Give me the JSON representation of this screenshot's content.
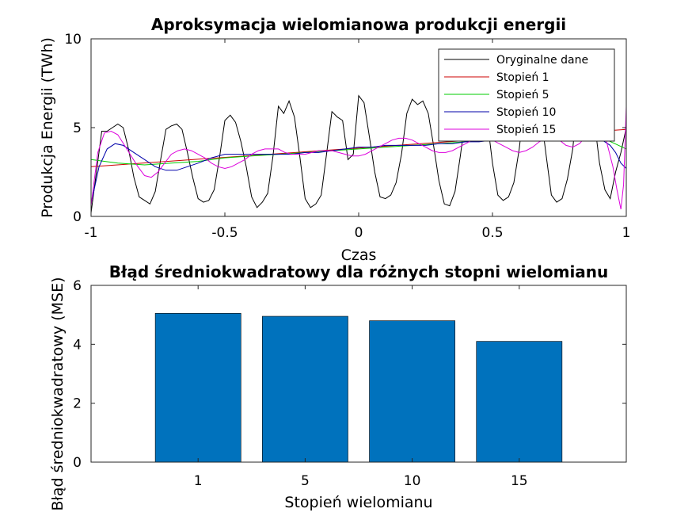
{
  "chart_data": [
    {
      "type": "line",
      "title": "Aproksymacja wielomianowa produkcji energii",
      "xlabel": "Czas",
      "ylabel": "Produkcja Energii (TWh)",
      "xlim": [
        -1,
        1
      ],
      "ylim": [
        0,
        10
      ],
      "xticks": [
        -1,
        -0.5,
        0,
        0.5,
        1
      ],
      "xtick_labels": [
        "-1",
        "-0.5",
        "0",
        "0.5",
        "1"
      ],
      "yticks": [
        0,
        5,
        10
      ],
      "ytick_labels": [
        "0",
        "5",
        "10"
      ],
      "grid": false,
      "legend": "top-right",
      "series": [
        {
          "name": "Oryginalne dane",
          "color": "#000000",
          "x": [
            -1.0,
            -0.98,
            -0.96,
            -0.94,
            -0.92,
            -0.9,
            -0.88,
            -0.86,
            -0.84,
            -0.82,
            -0.8,
            -0.78,
            -0.76,
            -0.74,
            -0.72,
            -0.7,
            -0.68,
            -0.66,
            -0.64,
            -0.62,
            -0.6,
            -0.58,
            -0.56,
            -0.54,
            -0.52,
            -0.5,
            -0.48,
            -0.46,
            -0.44,
            -0.42,
            -0.4,
            -0.38,
            -0.36,
            -0.34,
            -0.32,
            -0.3,
            -0.28,
            -0.26,
            -0.24,
            -0.22,
            -0.2,
            -0.18,
            -0.16,
            -0.14,
            -0.12,
            -0.1,
            -0.08,
            -0.06,
            -0.04,
            -0.02,
            0.0,
            0.02,
            0.04,
            0.06,
            0.08,
            0.1,
            0.12,
            0.14,
            0.16,
            0.18,
            0.2,
            0.22,
            0.24,
            0.26,
            0.28,
            0.3,
            0.32,
            0.34,
            0.36,
            0.38,
            0.4,
            0.42,
            0.44,
            0.46,
            0.48,
            0.5,
            0.52,
            0.54,
            0.56,
            0.58,
            0.6,
            0.62,
            0.64,
            0.66,
            0.68,
            0.7,
            0.72,
            0.74,
            0.76,
            0.78,
            0.8,
            0.82,
            0.84,
            0.86,
            0.88,
            0.9,
            0.92,
            0.94,
            0.96,
            0.98,
            1.0
          ],
          "y": [
            0.2,
            2.5,
            4.8,
            4.8,
            5.0,
            5.2,
            5.0,
            3.8,
            2.2,
            1.1,
            0.9,
            0.7,
            1.4,
            3.2,
            4.9,
            5.1,
            5.2,
            4.9,
            3.6,
            2.2,
            1.0,
            0.8,
            0.9,
            1.5,
            3.3,
            5.4,
            5.7,
            5.3,
            4.2,
            2.8,
            1.1,
            0.5,
            0.8,
            1.3,
            3.4,
            6.2,
            5.8,
            6.5,
            5.6,
            3.4,
            1.0,
            0.5,
            0.7,
            1.2,
            3.5,
            5.9,
            5.6,
            5.4,
            3.2,
            3.5,
            6.8,
            6.4,
            4.5,
            2.5,
            1.1,
            1.0,
            1.2,
            1.9,
            3.5,
            5.8,
            6.6,
            6.3,
            6.5,
            5.8,
            4.0,
            2.0,
            0.7,
            0.6,
            1.4,
            3.4,
            5.7,
            6.6,
            6.6,
            6.3,
            5.5,
            3.0,
            1.2,
            0.9,
            1.1,
            1.9,
            3.8,
            6.5,
            6.9,
            6.5,
            5.9,
            3.5,
            1.2,
            0.8,
            1.0,
            2.1,
            3.8,
            7.0,
            6.8,
            7.0,
            5.5,
            3.0,
            1.5,
            1.0,
            2.5,
            3.6,
            5.0
          ]
        },
        {
          "name": "Stopień 1",
          "color": "#cc0000",
          "x": [
            -1.0,
            1.0
          ],
          "y": [
            2.8,
            4.9
          ]
        },
        {
          "name": "Stopień 5",
          "color": "#00cc00",
          "x": [
            -1.0,
            -0.9,
            -0.8,
            -0.7,
            -0.6,
            -0.5,
            -0.4,
            -0.3,
            -0.2,
            -0.1,
            0.0,
            0.1,
            0.2,
            0.3,
            0.4,
            0.5,
            0.6,
            0.7,
            0.8,
            0.9,
            1.0
          ],
          "y": [
            3.2,
            3.0,
            2.9,
            3.0,
            3.1,
            3.3,
            3.4,
            3.5,
            3.6,
            3.7,
            3.8,
            3.9,
            4.0,
            4.1,
            4.2,
            4.3,
            4.5,
            4.6,
            4.7,
            4.5,
            3.8
          ]
        },
        {
          "name": "Stopień 10",
          "color": "#0000aa",
          "x": [
            -1.0,
            -0.97,
            -0.94,
            -0.91,
            -0.88,
            -0.84,
            -0.8,
            -0.76,
            -0.72,
            -0.68,
            -0.64,
            -0.6,
            -0.55,
            -0.5,
            -0.45,
            -0.4,
            -0.35,
            -0.3,
            -0.25,
            -0.2,
            -0.15,
            -0.1,
            -0.05,
            0.0,
            0.05,
            0.1,
            0.15,
            0.2,
            0.25,
            0.3,
            0.35,
            0.4,
            0.45,
            0.5,
            0.55,
            0.6,
            0.65,
            0.7,
            0.75,
            0.8,
            0.84,
            0.88,
            0.91,
            0.94,
            0.96,
            0.98,
            1.0
          ],
          "y": [
            0.7,
            2.8,
            3.8,
            4.1,
            4.0,
            3.6,
            3.2,
            2.8,
            2.6,
            2.6,
            2.8,
            3.0,
            3.3,
            3.5,
            3.5,
            3.5,
            3.5,
            3.5,
            3.5,
            3.6,
            3.6,
            3.7,
            3.8,
            3.9,
            3.9,
            4.0,
            4.0,
            4.0,
            4.0,
            4.1,
            4.1,
            4.2,
            4.2,
            4.3,
            4.3,
            4.4,
            4.5,
            4.6,
            4.6,
            4.6,
            4.5,
            4.4,
            4.3,
            4.0,
            3.6,
            3.0,
            2.7
          ]
        },
        {
          "name": "Stopień 15",
          "color": "#dd00dd",
          "x": [
            -1.0,
            -0.975,
            -0.95,
            -0.925,
            -0.9,
            -0.875,
            -0.85,
            -0.825,
            -0.8,
            -0.775,
            -0.75,
            -0.725,
            -0.7,
            -0.675,
            -0.65,
            -0.625,
            -0.6,
            -0.575,
            -0.55,
            -0.525,
            -0.5,
            -0.475,
            -0.45,
            -0.425,
            -0.4,
            -0.375,
            -0.35,
            -0.325,
            -0.3,
            -0.275,
            -0.25,
            -0.225,
            -0.2,
            -0.175,
            -0.15,
            -0.125,
            -0.1,
            -0.075,
            -0.05,
            -0.025,
            0.0,
            0.025,
            0.05,
            0.075,
            0.1,
            0.125,
            0.15,
            0.175,
            0.2,
            0.225,
            0.25,
            0.275,
            0.3,
            0.325,
            0.35,
            0.375,
            0.4,
            0.425,
            0.45,
            0.475,
            0.5,
            0.525,
            0.55,
            0.575,
            0.6,
            0.625,
            0.65,
            0.675,
            0.7,
            0.725,
            0.75,
            0.775,
            0.8,
            0.825,
            0.85,
            0.875,
            0.9,
            0.925,
            0.95,
            0.965,
            0.98,
            0.99,
            1.0
          ],
          "y": [
            0.6,
            3.6,
            4.7,
            4.8,
            4.6,
            4.0,
            3.4,
            2.8,
            2.3,
            2.2,
            2.5,
            3.0,
            3.5,
            3.7,
            3.8,
            3.7,
            3.5,
            3.3,
            3.0,
            2.8,
            2.7,
            2.8,
            3.0,
            3.2,
            3.5,
            3.7,
            3.8,
            3.8,
            3.8,
            3.6,
            3.5,
            3.5,
            3.5,
            3.6,
            3.7,
            3.7,
            3.7,
            3.6,
            3.5,
            3.4,
            3.4,
            3.5,
            3.7,
            3.9,
            4.1,
            4.3,
            4.4,
            4.4,
            4.3,
            4.1,
            3.9,
            3.7,
            3.6,
            3.6,
            3.7,
            3.9,
            4.1,
            4.3,
            4.4,
            4.4,
            4.3,
            4.1,
            3.9,
            3.7,
            3.6,
            3.7,
            3.9,
            4.2,
            4.4,
            4.5,
            4.3,
            4.0,
            3.9,
            4.1,
            4.5,
            4.8,
            4.9,
            4.3,
            2.8,
            1.5,
            0.4,
            1.8,
            6.2
          ]
        }
      ]
    },
    {
      "type": "bar",
      "title": "Błąd średniokwadratowy dla różnych stopni wielomianu",
      "xlabel": "Stopień wielomianu",
      "ylabel": "Błąd średniokwadratowy (MSE)",
      "categories": [
        "1",
        "5",
        "10",
        "15"
      ],
      "values": [
        5.05,
        4.95,
        4.8,
        4.1
      ],
      "ylim": [
        0,
        6
      ],
      "yticks": [
        0,
        2,
        4,
        6
      ],
      "ytick_labels": [
        "0",
        "2",
        "4",
        "6"
      ],
      "bar_color": "#0072bd",
      "grid": false
    }
  ]
}
